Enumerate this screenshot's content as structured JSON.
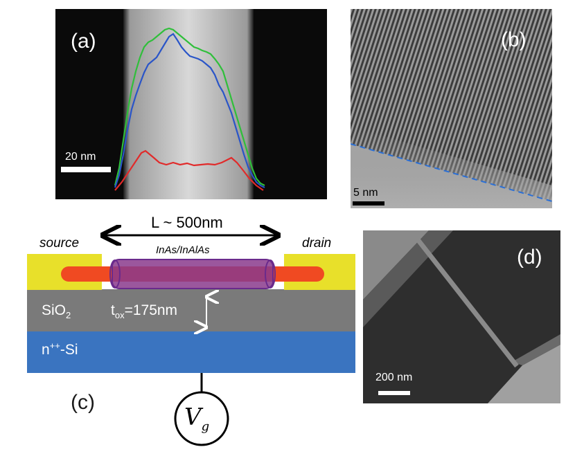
{
  "panel_a": {
    "label": "(a)",
    "scale_bar": "20 nm",
    "profile_colors": {
      "green": "#2fbf3a",
      "blue": "#2a55c8",
      "red": "#e12a2a"
    }
  },
  "panel_b": {
    "label": "(b)",
    "scale_bar": "5 nm",
    "interface_color": "#2a6fd6"
  },
  "panel_c": {
    "label": "(c)",
    "length": "L ~ 500nm",
    "source": "source",
    "drain": "drain",
    "nanowire": "InAs/InAlAs",
    "oxide": "SiO",
    "oxide_sub": "2",
    "thickness_main": "t",
    "thickness_sub": "ox",
    "thickness_value": "=175nm",
    "substrate_base": "n",
    "substrate_sup": "++",
    "substrate_rest": "-Si",
    "gate_symbol": "V",
    "gate_sub": "g",
    "colors": {
      "contact": "#e8e02a",
      "oxide": "#7a7a7a",
      "substrate": "#3a74c0",
      "core": "#f04a22",
      "shell": "#8a3a8c"
    }
  },
  "panel_d": {
    "label": "(d)",
    "scale_bar": "200 nm"
  }
}
